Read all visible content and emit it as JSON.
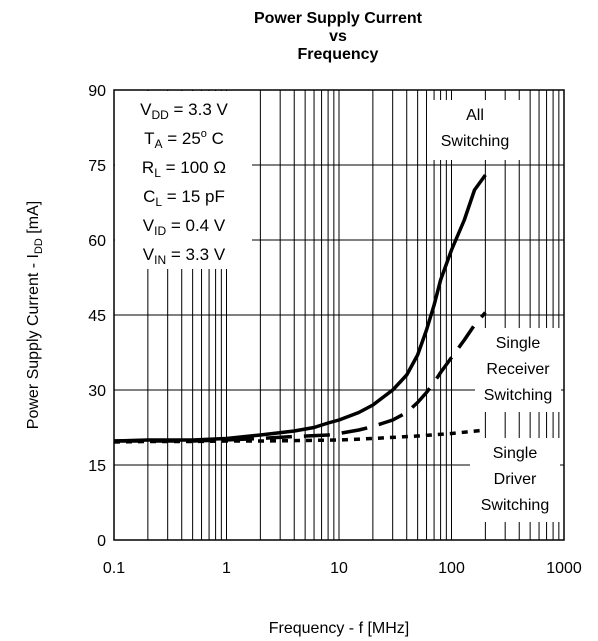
{
  "chart_data": {
    "type": "line",
    "title_lines": [
      "Power Supply Current",
      "vs",
      "Frequency"
    ],
    "xlabel": "Frequency - f [MHz]",
    "ylabel": {
      "main": "Power Supply Current - I",
      "sub": "DD",
      "unit": " [mA]"
    },
    "x_scale": "log",
    "xlim": [
      0.1,
      1000
    ],
    "ylim": [
      0,
      90
    ],
    "x_ticks": [
      0.1,
      1,
      10,
      100,
      1000
    ],
    "x_tick_labels": [
      "0.1",
      "1",
      "10",
      "100",
      "1000"
    ],
    "y_ticks": [
      0,
      15,
      30,
      45,
      60,
      75,
      90
    ],
    "y_tick_labels": [
      "0",
      "15",
      "30",
      "45",
      "60",
      "75",
      "90"
    ],
    "grid": true,
    "conditions": [
      {
        "sym": "V",
        "sub": "DD",
        "sup": "",
        "rest": " = 3.3 V"
      },
      {
        "sym": "T",
        "sub": "A",
        "sup": "",
        "rest": " = 25",
        "sup2": "o",
        "rest2": " C"
      },
      {
        "sym": "R",
        "sub": "L",
        "sup": "",
        "rest": " = 100 Ω"
      },
      {
        "sym": "C",
        "sub": "L",
        "sup": "",
        "rest": " = 15 pF"
      },
      {
        "sym": "V",
        "sub": "ID",
        "sup": "",
        "rest": " = 0.4 V"
      },
      {
        "sym": "V",
        "sub": "IN",
        "sup": "",
        "rest": " = 3.3 V"
      }
    ],
    "series": [
      {
        "name": "All Switching",
        "label_lines": [
          "All",
          "Switching"
        ],
        "style": "solid",
        "x": [
          0.1,
          0.2,
          0.5,
          1,
          2,
          4,
          6,
          8,
          10,
          15,
          20,
          30,
          40,
          50,
          60,
          70,
          80,
          100,
          130,
          160,
          200
        ],
        "y": [
          19.8,
          20,
          20,
          20.3,
          21,
          21.8,
          22.5,
          23.4,
          24,
          25.5,
          27,
          30,
          33,
          37,
          42,
          47,
          52,
          58,
          64,
          70,
          73
        ]
      },
      {
        "name": "Single Receiver Switching",
        "label_lines": [
          "Single",
          "Receiver",
          "Switching"
        ],
        "style": "dashed-long",
        "x": [
          0.1,
          0.2,
          0.5,
          1,
          2,
          4,
          8,
          10,
          15,
          20,
          30,
          40,
          50,
          60,
          70,
          80,
          100,
          130,
          160,
          200
        ],
        "y": [
          19.8,
          19.8,
          19.8,
          20,
          20.3,
          20.7,
          21,
          21.3,
          22,
          22.7,
          24,
          25.5,
          27.5,
          29.5,
          31.5,
          33.5,
          36.5,
          40,
          43,
          45.5
        ]
      },
      {
        "name": "Single Driver Switching",
        "label_lines": [
          "Single",
          "Driver",
          "Switching"
        ],
        "style": "dashed-short",
        "x": [
          0.1,
          0.2,
          0.5,
          1,
          2,
          5,
          10,
          20,
          50,
          100,
          200
        ],
        "y": [
          19.6,
          19.7,
          19.7,
          19.8,
          19.8,
          19.9,
          20,
          20.3,
          20.8,
          21.3,
          22
        ]
      }
    ]
  }
}
